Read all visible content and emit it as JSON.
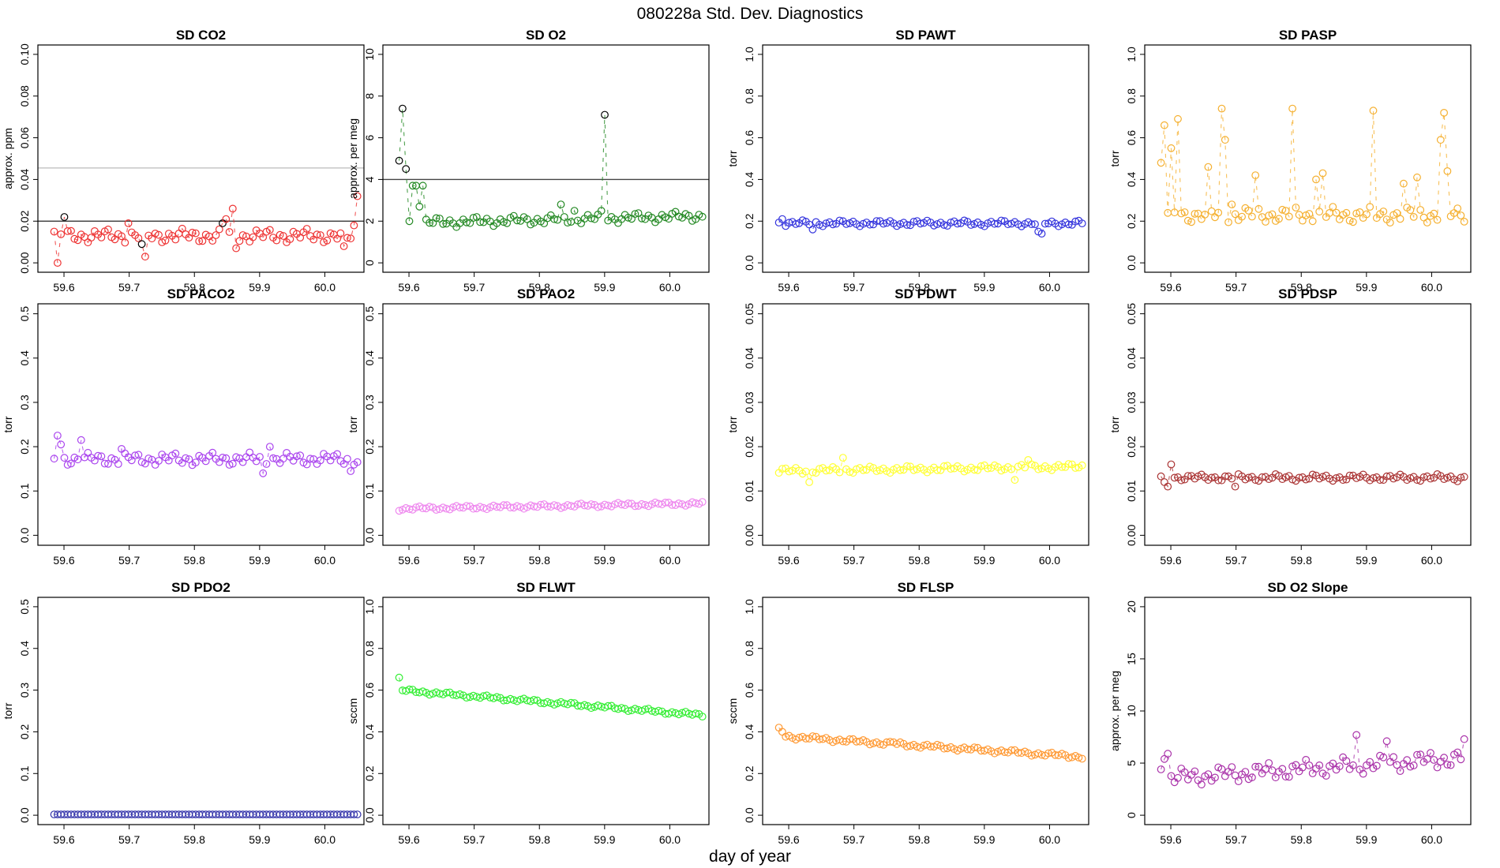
{
  "figure": {
    "title": "080228a   Std. Dev. Diagnostics",
    "xlabel": "day of year"
  },
  "chart_data": [
    {
      "type": "scatter",
      "title": "SD CO2",
      "ylabel": "approx. ppm",
      "color": "#ee3333",
      "xlim": [
        59.56,
        60.06
      ],
      "ylim": [
        0,
        0.1
      ],
      "yticks": [
        0,
        0.02,
        0.04,
        0.06,
        0.08,
        0.1
      ],
      "xticks": [
        59.6,
        59.7,
        59.8,
        59.9,
        60.0
      ],
      "hlines": [
        {
          "y": 0.02,
          "color": "#222222"
        },
        {
          "y": 0.0455,
          "color": "#bbbbbb"
        }
      ],
      "n": 91,
      "base": 0.013,
      "amp": 0.0035,
      "trend": 0,
      "spikes": {
        "0": 0.015,
        "1": 0.0,
        "3": 0.022,
        "22": 0.019,
        "26": 0.009,
        "27": 0.003,
        "50": 0.019,
        "51": 0.021,
        "53": 0.026,
        "54": 0.007,
        "86": 0.008,
        "87": 0.012,
        "89": 0.018,
        "90": 0.032
      },
      "outlined": [
        3,
        26,
        50
      ]
    },
    {
      "type": "scatter",
      "title": "SD O2",
      "ylabel": "approx. per meg",
      "color": "#228822",
      "xlim": [
        59.56,
        60.06
      ],
      "ylim": [
        0,
        10
      ],
      "yticks": [
        0,
        2,
        4,
        6,
        8,
        10
      ],
      "xticks": [
        59.6,
        59.7,
        59.8,
        59.9,
        60.0
      ],
      "hlines": [
        {
          "y": 4,
          "color": "#444444"
        }
      ],
      "n": 91,
      "base": 1.9,
      "amp": 0.25,
      "trend": 0.35,
      "spikes": {
        "0": 4.9,
        "1": 7.4,
        "2": 4.5,
        "3": 2.0,
        "4": 3.7,
        "5": 3.7,
        "6": 2.7,
        "7": 3.7,
        "48": 2.8,
        "52": 2.5,
        "60": 2.5,
        "61": 7.1
      },
      "outlined": [
        0,
        1,
        2,
        61
      ]
    },
    {
      "type": "scatter",
      "title": "SD PAWT",
      "ylabel": "torr",
      "color": "#3333dd",
      "xlim": [
        59.56,
        60.06
      ],
      "ylim": [
        0,
        1
      ],
      "yticks": [
        0,
        0.2,
        0.4,
        0.6,
        0.8,
        1.0
      ],
      "xticks": [
        59.6,
        59.7,
        59.8,
        59.9,
        60.0
      ],
      "hlines": [],
      "n": 91,
      "base": 0.19,
      "amp": 0.015,
      "trend": 0,
      "spikes": {
        "1": 0.21,
        "10": 0.16,
        "77": 0.15,
        "78": 0.14
      }
    },
    {
      "type": "scatter",
      "title": "SD PASP",
      "ylabel": "torr",
      "color": "#f5b030",
      "xlim": [
        59.56,
        60.06
      ],
      "ylim": [
        0,
        1
      ],
      "yticks": [
        0,
        0.2,
        0.4,
        0.6,
        0.8,
        1.0
      ],
      "xticks": [
        59.6,
        59.7,
        59.8,
        59.9,
        60.0
      ],
      "hlines": [],
      "n": 91,
      "base": 0.23,
      "amp": 0.04,
      "trend": 0,
      "spikes": {
        "0": 0.48,
        "1": 0.66,
        "3": 0.55,
        "5": 0.69,
        "14": 0.46,
        "18": 0.74,
        "19": 0.59,
        "21": 0.28,
        "28": 0.42,
        "39": 0.74,
        "46": 0.4,
        "48": 0.43,
        "63": 0.73,
        "72": 0.38,
        "76": 0.41,
        "83": 0.59,
        "84": 0.72,
        "85": 0.44
      }
    },
    {
      "type": "scatter",
      "title": "SD PACO2",
      "ylabel": "torr",
      "color": "#aa44ee",
      "xlim": [
        59.56,
        60.06
      ],
      "ylim": [
        0,
        0.5
      ],
      "yticks": [
        0,
        0.1,
        0.2,
        0.3,
        0.4,
        0.5
      ],
      "xticks": [
        59.6,
        59.7,
        59.8,
        59.9,
        60.0
      ],
      "hlines": [],
      "n": 91,
      "base": 0.172,
      "amp": 0.015,
      "trend": 0,
      "spikes": {
        "1": 0.225,
        "2": 0.205,
        "8": 0.215,
        "20": 0.195,
        "62": 0.14,
        "64": 0.2,
        "88": 0.145
      }
    },
    {
      "type": "scatter",
      "title": "SD PAO2",
      "ylabel": "torr",
      "color": "#ee88ee",
      "xlim": [
        59.56,
        60.06
      ],
      "ylim": [
        0,
        0.5
      ],
      "yticks": [
        0,
        0.1,
        0.2,
        0.3,
        0.4,
        0.5
      ],
      "xticks": [
        59.6,
        59.7,
        59.8,
        59.9,
        60.0
      ],
      "hlines": [],
      "n": 91,
      "base": 0.06,
      "amp": 0.005,
      "trend": 0.012,
      "spikes": {}
    },
    {
      "type": "scatter",
      "title": "SD PDWT",
      "ylabel": "torr",
      "color": "#ffff33",
      "xlim": [
        59.56,
        60.06
      ],
      "ylim": [
        0,
        0.05
      ],
      "yticks": [
        0,
        0.01,
        0.02,
        0.03,
        0.04,
        0.05
      ],
      "xticks": [
        59.6,
        59.7,
        59.8,
        59.9,
        60.0
      ],
      "hlines": [],
      "n": 91,
      "base": 0.0145,
      "amp": 0.0008,
      "trend": 0.001,
      "spikes": {
        "9": 0.012,
        "19": 0.0175,
        "70": 0.0125,
        "74": 0.017
      }
    },
    {
      "type": "scatter",
      "title": "SD PDSP",
      "ylabel": "torr",
      "color": "#aa3333",
      "xlim": [
        59.56,
        60.06
      ],
      "ylim": [
        0,
        0.05
      ],
      "yticks": [
        0,
        0.01,
        0.02,
        0.03,
        0.04,
        0.05
      ],
      "xticks": [
        59.6,
        59.7,
        59.8,
        59.9,
        60.0
      ],
      "hlines": [],
      "n": 91,
      "base": 0.013,
      "amp": 0.0008,
      "trend": 0,
      "spikes": {
        "1": 0.012,
        "2": 0.011,
        "3": 0.016,
        "22": 0.011
      }
    },
    {
      "type": "scatter",
      "title": "SD PDO2",
      "ylabel": "torr",
      "color": "#3333aa",
      "xlim": [
        59.56,
        60.06
      ],
      "ylim": [
        0,
        0.5
      ],
      "yticks": [
        0,
        0.1,
        0.2,
        0.3,
        0.4,
        0.5
      ],
      "xticks": [
        59.6,
        59.7,
        59.8,
        59.9,
        60.0
      ],
      "hlines": [],
      "n": 91,
      "base": 0.002,
      "amp": 0,
      "trend": 0,
      "spikes": {}
    },
    {
      "type": "scatter",
      "title": "SD FLWT",
      "ylabel": "sccm",
      "color": "#33ee33",
      "xlim": [
        59.56,
        60.06
      ],
      "ylim": [
        0,
        1
      ],
      "yticks": [
        0,
        0.2,
        0.4,
        0.6,
        0.8,
        1.0
      ],
      "xticks": [
        59.6,
        59.7,
        59.8,
        59.9,
        60.0
      ],
      "hlines": [],
      "n": 91,
      "base": 0.6,
      "amp": 0.01,
      "trend": -0.12,
      "spikes": {
        "0": 0.66
      }
    },
    {
      "type": "scatter",
      "title": "SD FLSP",
      "ylabel": "sccm",
      "color": "#ff9933",
      "xlim": [
        59.56,
        60.06
      ],
      "ylim": [
        0,
        1
      ],
      "yticks": [
        0,
        0.2,
        0.4,
        0.6,
        0.8,
        1.0
      ],
      "xticks": [
        59.6,
        59.7,
        59.8,
        59.9,
        60.0
      ],
      "hlines": [],
      "n": 91,
      "base": 0.38,
      "amp": 0.012,
      "trend": -0.1,
      "spikes": {
        "0": 0.42,
        "1": 0.4,
        "34": 0.35
      }
    },
    {
      "type": "scatter",
      "title": "SD O2 Slope",
      "ylabel": "approx. per meg",
      "color": "#aa33aa",
      "xlim": [
        59.56,
        60.06
      ],
      "ylim": [
        0,
        20
      ],
      "yticks": [
        0,
        5,
        10,
        15,
        20
      ],
      "xticks": [
        59.6,
        59.7,
        59.8,
        59.9,
        60.0
      ],
      "hlines": [],
      "n": 91,
      "base": 3.5,
      "amp": 0.9,
      "trend": 2.0,
      "spikes": {
        "0": 4.4,
        "1": 5.4,
        "2": 5.9,
        "58": 7.7,
        "67": 7.1,
        "90": 7.3
      }
    }
  ]
}
